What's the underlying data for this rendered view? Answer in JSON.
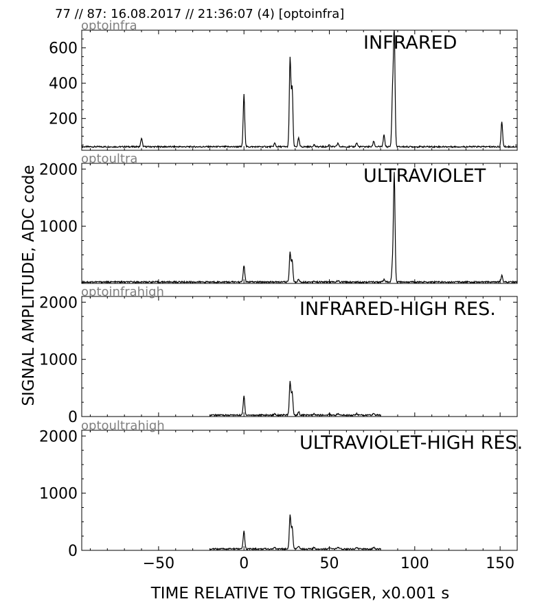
{
  "header": {
    "title": "77 // 87:   16.08.2017 // 21:36:07 (4)  [optoinfra]"
  },
  "figure": {
    "ylabel": "SIGNAL AMPLITUDE,  ADC code",
    "xlabel": "TIME RELATIVE TO TRIGGER,   x0.001 s"
  },
  "chart_data": [
    {
      "type": "line",
      "channel": "optoinfra",
      "title": "INFRARED",
      "xlim": [
        -95,
        160
      ],
      "ylim": [
        20,
        700
      ],
      "yticks": [
        200,
        400,
        600
      ],
      "xticks": [
        -50,
        0,
        50,
        100,
        150
      ],
      "grid": false,
      "baseline": 40,
      "x_range": [
        -95,
        160
      ],
      "series": [
        {
          "color": "#000000",
          "peaks": [
            {
              "x": -60,
              "y": 88
            },
            {
              "x": 0,
              "y": 335
            },
            {
              "x": 18,
              "y": 60
            },
            {
              "x": 27,
              "y": 540
            },
            {
              "x": 28.2,
              "y": 375
            },
            {
              "x": 32,
              "y": 88
            },
            {
              "x": 41,
              "y": 52
            },
            {
              "x": 50,
              "y": 52
            },
            {
              "x": 55,
              "y": 60
            },
            {
              "x": 66,
              "y": 62
            },
            {
              "x": 76,
              "y": 72
            },
            {
              "x": 82,
              "y": 105
            },
            {
              "x": 87,
              "y": 340
            },
            {
              "x": 88,
              "y": 700
            },
            {
              "x": 151,
              "y": 182
            }
          ]
        }
      ]
    },
    {
      "type": "line",
      "channel": "optoultra",
      "title": "ULTRAVIOLET",
      "xlim": [
        -95,
        160
      ],
      "ylim": [
        0,
        2100
      ],
      "yticks": [
        1000,
        2000
      ],
      "xticks": [
        -50,
        0,
        50,
        100,
        150
      ],
      "grid": false,
      "baseline": 25,
      "x_range": [
        -95,
        160
      ],
      "series": [
        {
          "color": "#000000",
          "peaks": [
            {
              "x": 0,
              "y": 320
            },
            {
              "x": 27,
              "y": 540
            },
            {
              "x": 28.2,
              "y": 400
            },
            {
              "x": 32,
              "y": 70
            },
            {
              "x": 41,
              "y": 45
            },
            {
              "x": 55,
              "y": 50
            },
            {
              "x": 82,
              "y": 65
            },
            {
              "x": 87,
              "y": 350
            },
            {
              "x": 88,
              "y": 1920
            },
            {
              "x": 151,
              "y": 145
            }
          ]
        }
      ]
    },
    {
      "type": "line",
      "channel": "optoinfrahigh",
      "title": "INFRARED-HIGH RES.",
      "xlim": [
        -95,
        160
      ],
      "ylim": [
        0,
        2100
      ],
      "yticks": [
        0,
        1000,
        2000
      ],
      "xticks": [
        -50,
        0,
        50,
        100,
        150
      ],
      "grid": false,
      "baseline": 25,
      "x_range": [
        -20,
        80
      ],
      "series": [
        {
          "color": "#000000",
          "peaks": [
            {
              "x": 0,
              "y": 360
            },
            {
              "x": 18,
              "y": 50
            },
            {
              "x": 27,
              "y": 600
            },
            {
              "x": 28.2,
              "y": 420
            },
            {
              "x": 32,
              "y": 80
            },
            {
              "x": 41,
              "y": 45
            },
            {
              "x": 50,
              "y": 45
            },
            {
              "x": 55,
              "y": 50
            },
            {
              "x": 66,
              "y": 50
            },
            {
              "x": 76,
              "y": 55
            }
          ]
        }
      ]
    },
    {
      "type": "line",
      "channel": "optoultrahigh",
      "title": "ULTRAVIOLET-HIGH RES.",
      "xlim": [
        -95,
        160
      ],
      "ylim": [
        0,
        2100
      ],
      "yticks": [
        0,
        1000,
        2000
      ],
      "xticks": [
        -50,
        0,
        50,
        100,
        150
      ],
      "grid": false,
      "baseline": 25,
      "x_range": [
        -20,
        80
      ],
      "series": [
        {
          "color": "#000000",
          "peaks": [
            {
              "x": 0,
              "y": 340
            },
            {
              "x": 18,
              "y": 50
            },
            {
              "x": 27,
              "y": 610
            },
            {
              "x": 28.2,
              "y": 400
            },
            {
              "x": 32,
              "y": 80
            },
            {
              "x": 41,
              "y": 45
            },
            {
              "x": 50,
              "y": 45
            },
            {
              "x": 55,
              "y": 50
            },
            {
              "x": 66,
              "y": 50
            },
            {
              "x": 76,
              "y": 55
            }
          ]
        }
      ]
    }
  ],
  "colors": {
    "line": "#000000",
    "channel_label": "#808080",
    "axes": "#000000",
    "background": "#ffffff"
  }
}
